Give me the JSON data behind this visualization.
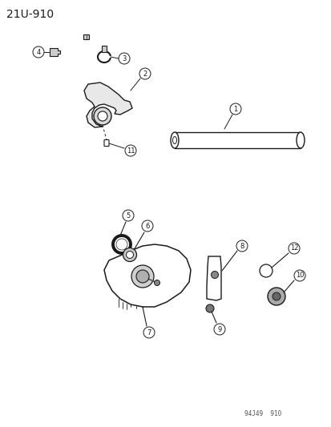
{
  "title": "21U-910",
  "footer": "94J49  910",
  "bg": "#ffffff",
  "lc": "#1a1a1a",
  "fig_width": 4.14,
  "fig_height": 5.33,
  "dpi": 100
}
